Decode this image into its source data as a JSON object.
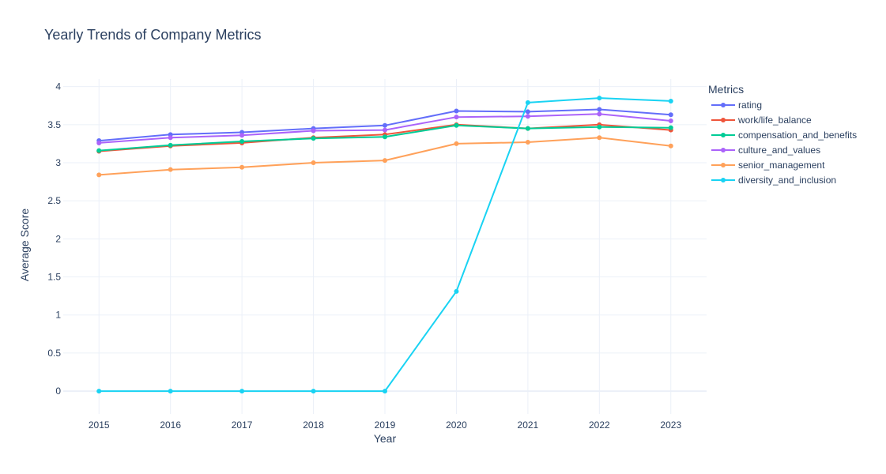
{
  "chart_data": {
    "type": "line",
    "title": "Yearly Trends of Company Metrics",
    "xlabel": "Year",
    "ylabel": "Average Score",
    "legend_title": "Metrics",
    "legend_position": "right",
    "grid": true,
    "x": [
      2015,
      2016,
      2017,
      2018,
      2019,
      2020,
      2021,
      2022,
      2023
    ],
    "xlim": [
      2014.5,
      2023.5
    ],
    "ylim": [
      -0.3,
      4.1
    ],
    "yticks": [
      0,
      0.5,
      1,
      1.5,
      2,
      2.5,
      3,
      3.5,
      4
    ],
    "series": [
      {
        "name": "rating",
        "color": "#636efa",
        "values": [
          3.29,
          3.37,
          3.4,
          3.45,
          3.49,
          3.68,
          3.67,
          3.7,
          3.63
        ]
      },
      {
        "name": "work/life_balance",
        "color": "#ef553b",
        "values": [
          3.15,
          3.22,
          3.26,
          3.33,
          3.37,
          3.5,
          3.45,
          3.5,
          3.43
        ]
      },
      {
        "name": "compensation_and_benefits",
        "color": "#00cc96",
        "values": [
          3.16,
          3.23,
          3.28,
          3.32,
          3.34,
          3.49,
          3.45,
          3.47,
          3.46
        ]
      },
      {
        "name": "culture_and_values",
        "color": "#ab63fa",
        "values": [
          3.26,
          3.33,
          3.36,
          3.42,
          3.43,
          3.6,
          3.61,
          3.64,
          3.55
        ]
      },
      {
        "name": "senior_management",
        "color": "#ffa15a",
        "values": [
          2.84,
          2.91,
          2.94,
          3.0,
          3.03,
          3.25,
          3.27,
          3.33,
          3.22
        ]
      },
      {
        "name": "diversity_and_inclusion",
        "color": "#19d3f3",
        "values": [
          0,
          0,
          0,
          0,
          0,
          1.31,
          3.79,
          3.85,
          3.81
        ]
      }
    ]
  }
}
